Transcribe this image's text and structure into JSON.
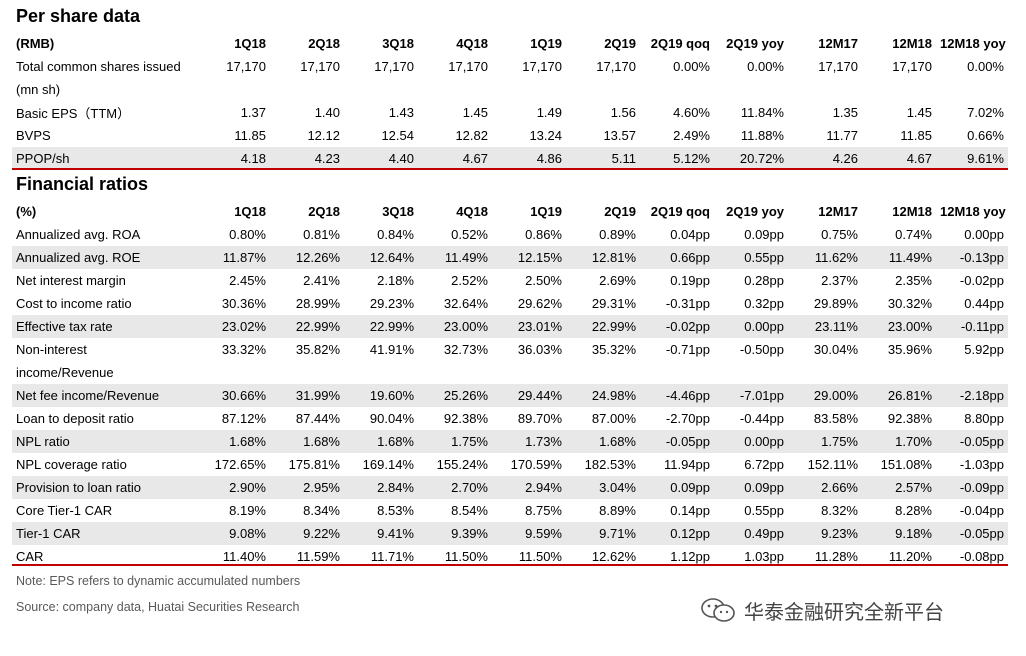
{
  "per_share": {
    "title": "Per share data",
    "header": [
      "(RMB)",
      "1Q18",
      "2Q18",
      "3Q18",
      "4Q18",
      "1Q19",
      "2Q19",
      "2Q19 qoq",
      "2Q19 yoy",
      "12M17",
      "12M18",
      "12M18 yoy"
    ],
    "rows": [
      {
        "label": "Total common shares issued",
        "values": [
          "17,170",
          "17,170",
          "17,170",
          "17,170",
          "17,170",
          "17,170",
          "0.00%",
          "0.00%",
          "17,170",
          "17,170",
          "0.00%"
        ],
        "shaded": false
      },
      {
        "label": "(mn sh)",
        "values": [
          "",
          "",
          "",
          "",
          "",
          "",
          "",
          "",
          "",
          "",
          ""
        ],
        "shaded": false
      },
      {
        "label": "Basic EPS（TTM）",
        "values": [
          "1.37",
          "1.40",
          "1.43",
          "1.45",
          "1.49",
          "1.56",
          "4.60%",
          "11.84%",
          "1.35",
          "1.45",
          "7.02%"
        ],
        "shaded": false
      },
      {
        "label": "BVPS",
        "values": [
          "11.85",
          "12.12",
          "12.54",
          "12.82",
          "13.24",
          "13.57",
          "2.49%",
          "11.88%",
          "11.77",
          "11.85",
          "0.66%"
        ],
        "shaded": false
      },
      {
        "label": "PPOP/sh",
        "values": [
          "4.18",
          "4.23",
          "4.40",
          "4.67",
          "4.86",
          "5.11",
          "5.12%",
          "20.72%",
          "4.26",
          "4.67",
          "9.61%"
        ],
        "shaded": true
      }
    ]
  },
  "ratios": {
    "title": "Financial ratios",
    "header": [
      "(%)",
      "1Q18",
      "2Q18",
      "3Q18",
      "4Q18",
      "1Q19",
      "2Q19",
      "2Q19 qoq",
      "2Q19 yoy",
      "12M17",
      "12M18",
      "12M18 yoy"
    ],
    "rows": [
      {
        "label": "Annualized avg. ROA",
        "values": [
          "0.80%",
          "0.81%",
          "0.84%",
          "0.52%",
          "0.86%",
          "0.89%",
          "0.04pp",
          "0.09pp",
          "0.75%",
          "0.74%",
          "0.00pp"
        ],
        "shaded": false
      },
      {
        "label": "Annualized avg. ROE",
        "values": [
          "11.87%",
          "12.26%",
          "12.64%",
          "11.49%",
          "12.15%",
          "12.81%",
          "0.66pp",
          "0.55pp",
          "11.62%",
          "11.49%",
          "-0.13pp"
        ],
        "shaded": true
      },
      {
        "label": "Net interest margin",
        "values": [
          "2.45%",
          "2.41%",
          "2.18%",
          "2.52%",
          "2.50%",
          "2.69%",
          "0.19pp",
          "0.28pp",
          "2.37%",
          "2.35%",
          "-0.02pp"
        ],
        "shaded": false
      },
      {
        "label": "Cost to income ratio",
        "values": [
          "30.36%",
          "28.99%",
          "29.23%",
          "32.64%",
          "29.62%",
          "29.31%",
          "-0.31pp",
          "0.32pp",
          "29.89%",
          "30.32%",
          "0.44pp"
        ],
        "shaded": false
      },
      {
        "label": "Effective tax rate",
        "values": [
          "23.02%",
          "22.99%",
          "22.99%",
          "23.00%",
          "23.01%",
          "22.99%",
          "-0.02pp",
          "0.00pp",
          "23.11%",
          "23.00%",
          "-0.11pp"
        ],
        "shaded": true
      },
      {
        "label": "Non-interest",
        "values": [
          "33.32%",
          "35.82%",
          "41.91%",
          "32.73%",
          "36.03%",
          "35.32%",
          "-0.71pp",
          "-0.50pp",
          "30.04%",
          "35.96%",
          "5.92pp"
        ],
        "shaded": false
      },
      {
        "label": "income/Revenue",
        "values": [
          "",
          "",
          "",
          "",
          "",
          "",
          "",
          "",
          "",
          "",
          ""
        ],
        "shaded": false
      },
      {
        "label": "Net fee income/Revenue",
        "values": [
          "30.66%",
          "31.99%",
          "19.60%",
          "25.26%",
          "29.44%",
          "24.98%",
          "-4.46pp",
          "-7.01pp",
          "29.00%",
          "26.81%",
          "-2.18pp"
        ],
        "shaded": true
      },
      {
        "label": "Loan to deposit ratio",
        "values": [
          "87.12%",
          "87.44%",
          "90.04%",
          "92.38%",
          "89.70%",
          "87.00%",
          "-2.70pp",
          "-0.44pp",
          "83.58%",
          "92.38%",
          "8.80pp"
        ],
        "shaded": false
      },
      {
        "label": "NPL ratio",
        "values": [
          "1.68%",
          "1.68%",
          "1.68%",
          "1.75%",
          "1.73%",
          "1.68%",
          "-0.05pp",
          "0.00pp",
          "1.75%",
          "1.70%",
          "-0.05pp"
        ],
        "shaded": true
      },
      {
        "label": "NPL coverage ratio",
        "values": [
          "172.65%",
          "175.81%",
          "169.14%",
          "155.24%",
          "170.59%",
          "182.53%",
          "11.94pp",
          "6.72pp",
          "152.11%",
          "151.08%",
          "-1.03pp"
        ],
        "shaded": false
      },
      {
        "label": "Provision to loan ratio",
        "values": [
          "2.90%",
          "2.95%",
          "2.84%",
          "2.70%",
          "2.94%",
          "3.04%",
          "0.09pp",
          "0.09pp",
          "2.66%",
          "2.57%",
          "-0.09pp"
        ],
        "shaded": true
      },
      {
        "label": "Core Tier-1 CAR",
        "values": [
          "8.19%",
          "8.34%",
          "8.53%",
          "8.54%",
          "8.75%",
          "8.89%",
          "0.14pp",
          "0.55pp",
          "8.32%",
          "8.28%",
          "-0.04pp"
        ],
        "shaded": false
      },
      {
        "label": "Tier-1 CAR",
        "values": [
          "9.08%",
          "9.22%",
          "9.41%",
          "9.39%",
          "9.59%",
          "9.71%",
          "0.12pp",
          "0.49pp",
          "9.23%",
          "9.18%",
          "-0.05pp"
        ],
        "shaded": true
      },
      {
        "label": "CAR",
        "values": [
          "11.40%",
          "11.59%",
          "11.71%",
          "11.50%",
          "11.50%",
          "12.62%",
          "1.12pp",
          "1.03pp",
          "11.28%",
          "11.20%",
          "-0.08pp"
        ],
        "shaded": false
      }
    ]
  },
  "notes": {
    "note": "Note: EPS refers to dynamic accumulated numbers",
    "source": "Source: company data, Huatai Securities Research"
  },
  "watermark": {
    "text": "华泰金融研究全新平台",
    "icon": "wechat-icon"
  },
  "colors": {
    "accent_line": "#c00000",
    "shaded_row": "#e8e8e8"
  }
}
